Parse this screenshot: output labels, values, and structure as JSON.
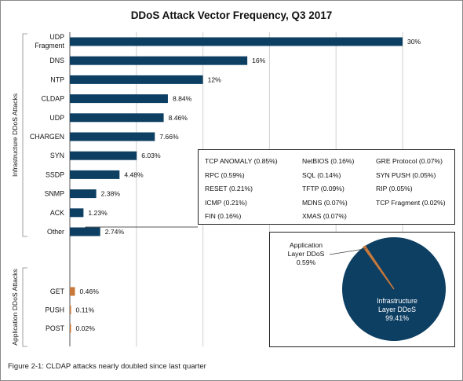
{
  "title": "DDoS Attack Vector Frequency, Q3 2017",
  "caption": "Figure 2-1: CLDAP attacks nearly doubled since last quarter",
  "colors": {
    "infrastructure": "#0d3f63",
    "application": "#c8783a",
    "grid": "#cfcfcf",
    "pie_main": "#0d3f63",
    "pie_small": "#c8783a"
  },
  "chart_data": [
    {
      "type": "bar",
      "orientation": "horizontal",
      "title": "DDoS Attack Vector Frequency, Q3 2017",
      "unit": "%",
      "xlim": [
        0,
        30
      ],
      "grid": true,
      "groups": [
        {
          "name": "Infrastructure DDoS Attacks",
          "categories": [
            "UDP Fragment",
            "DNS",
            "NTP",
            "CLDAP",
            "UDP",
            "CHARGEN",
            "SYN",
            "SSDP",
            "SNMP",
            "ACK",
            "Other"
          ],
          "values": [
            30,
            16,
            12,
            8.84,
            8.46,
            7.66,
            6.03,
            4.48,
            2.38,
            1.23,
            2.74
          ],
          "labels": [
            "30%",
            "16%",
            "12%",
            "8.84%",
            "8.46%",
            "7.66%",
            "6.03%",
            "4.48%",
            "2.38%",
            "1.23%",
            "2.74%"
          ]
        },
        {
          "name": "Application DDoS Attacks",
          "categories": [
            "GET",
            "PUSH",
            "POST"
          ],
          "values": [
            0.46,
            0.11,
            0.02
          ],
          "labels": [
            "0.46%",
            "0.11%",
            "0.02%"
          ]
        }
      ]
    },
    {
      "type": "table",
      "annotation_for": "Other",
      "items": [
        "TCP ANOMALY (0.85%)",
        "NetBIOS (0.16%)",
        "GRE Protocol (0.07%)",
        "RPC (0.59%)",
        "SQL (0.14%)",
        "SYN PUSH (0.05%)",
        "RESET (0.21%)",
        "TFTP (0.09%)",
        "RIP (0.05%)",
        "ICMP (0.21%)",
        "MDNS (0.07%)",
        "TCP Fragment (0.02%)",
        "FIN (0.16%)",
        "XMAS (0.07%)"
      ]
    },
    {
      "type": "pie",
      "slices": [
        {
          "label": "Infrastructure Layer DDoS",
          "value": 99.41,
          "value_label": "99.41%"
        },
        {
          "label": "Application Layer DDoS",
          "value": 0.59,
          "value_label": "0.59%"
        }
      ]
    }
  ]
}
